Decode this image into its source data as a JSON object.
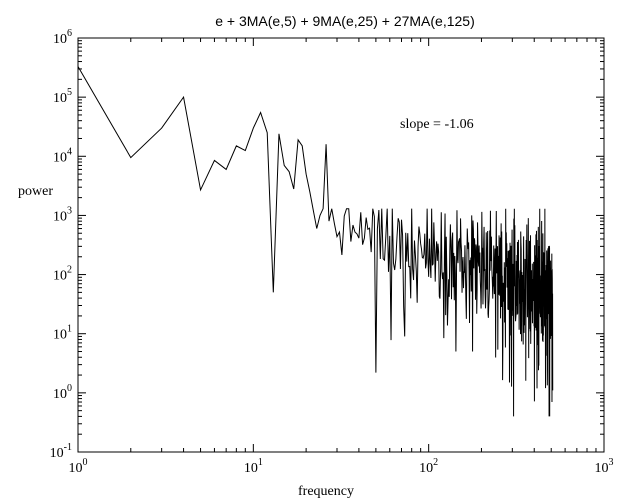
{
  "chart_data": {
    "type": "line",
    "title": "e + 3MA(e,5) + 9MA(e,25) + 27MA(e,125)",
    "xlabel": "frequency",
    "ylabel": "power",
    "xscale": "log",
    "yscale": "log",
    "xlim": [
      1,
      1000
    ],
    "ylim": [
      0.1,
      1000000
    ],
    "x_ticks": [
      {
        "base": "10",
        "exp": "0",
        "value": 1
      },
      {
        "base": "10",
        "exp": "1",
        "value": 10
      },
      {
        "base": "10",
        "exp": "2",
        "value": 100
      },
      {
        "base": "10",
        "exp": "3",
        "value": 1000
      }
    ],
    "y_ticks": [
      {
        "base": "10",
        "exp": "-1",
        "value": 0.1
      },
      {
        "base": "10",
        "exp": "0",
        "value": 1
      },
      {
        "base": "10",
        "exp": "1",
        "value": 10
      },
      {
        "base": "10",
        "exp": "2",
        "value": 100
      },
      {
        "base": "10",
        "exp": "3",
        "value": 1000
      },
      {
        "base": "10",
        "exp": "4",
        "value": 10000
      },
      {
        "base": "10",
        "exp": "5",
        "value": 100000
      },
      {
        "base": "10",
        "exp": "6",
        "value": 1000000
      }
    ],
    "grid": false,
    "legend": "none",
    "annotation": "slope = -1.06",
    "line_color": "#000000",
    "series": [
      {
        "x": [
          1,
          2,
          3,
          4,
          5,
          6,
          7,
          8,
          9,
          10,
          11,
          12,
          13,
          14,
          15,
          16,
          17,
          18,
          19,
          20,
          21,
          22,
          23,
          24,
          25,
          26,
          27
        ],
        "y": [
          330000,
          9500,
          30000,
          100000,
          2700,
          8500,
          6000,
          15000,
          12500,
          30000,
          55000,
          25000,
          50,
          24000,
          7000,
          5500,
          2800,
          19000,
          15000,
          5000,
          2500,
          1200,
          600,
          1000,
          1300,
          16000,
          800
        ]
      }
    ],
    "noise_band": {
      "x_range": [
        27,
        510
      ],
      "log10_center_at_27": 2.9,
      "log10_center_at_510": 1.7,
      "log10_spread_at_27": 0.6,
      "log10_spread_at_510": 1.35,
      "min": 0.4,
      "max": 1300
    }
  }
}
